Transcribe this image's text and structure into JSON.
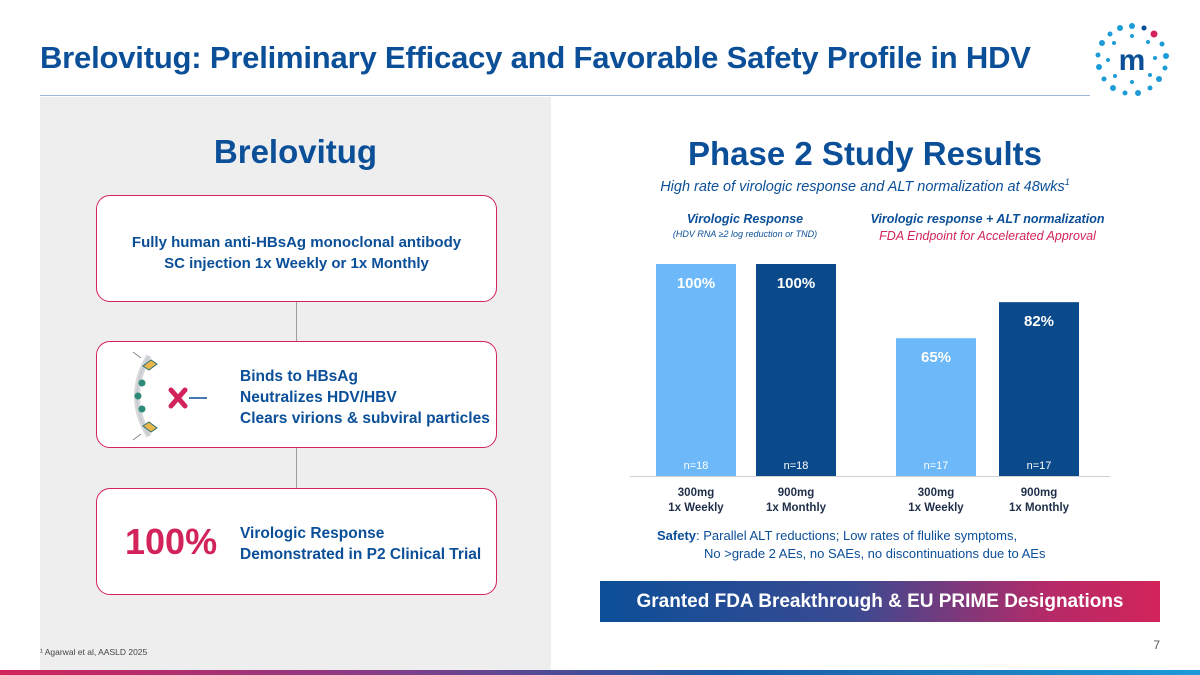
{
  "title": "Brelovitug: Preliminary Efficacy and Favorable Safety Profile in HDV",
  "left": {
    "heading": "Brelovitug",
    "box1": [
      "Fully human anti-HBsAg monoclonal antibody",
      "SC injection 1x Weekly or 1x Monthly"
    ],
    "box2": [
      "Binds to HBsAg",
      "Neutralizes HDV/HBV",
      "Clears virions & subviral particles"
    ],
    "box3": {
      "big": "100%",
      "lines": [
        "Virologic Response",
        "Demonstrated in P2 Clinical Trial"
      ]
    }
  },
  "right": {
    "heading": "Phase 2 Study Results",
    "subtitle": "High rate of virologic response and ALT normalization at 48wks",
    "subtitle_sup": "1",
    "legend_a_title": "Virologic Response",
    "legend_a_sub": "(HDV RNA ≥2 log reduction or TND)",
    "legend_b_title": "Virologic response + ALT normalization",
    "legend_b_sub": "FDA Endpoint for Accelerated Approval",
    "safety_label": "Safety",
    "safety_line1": ": Parallel ALT reductions; Low rates of flulike symptoms,",
    "safety_line2": "No >grade 2 AEs, no SAEs, no discontinuations due to AEs",
    "banner": "Granted FDA Breakthrough & EU PRIME Designations"
  },
  "chart_data": {
    "type": "bar",
    "ylim": [
      0,
      100
    ],
    "groups": [
      "Virologic Response",
      "Virologic response + ALT normalization"
    ],
    "bars": [
      {
        "group": 0,
        "dose": "300mg",
        "freq": "1x Weekly",
        "value": 100,
        "label": "100%",
        "n": "n=18",
        "color": "#6cb8f8"
      },
      {
        "group": 0,
        "dose": "900mg",
        "freq": "1x Monthly",
        "value": 100,
        "label": "100%",
        "n": "n=18",
        "color": "#0a4a8a"
      },
      {
        "group": 1,
        "dose": "300mg",
        "freq": "1x Weekly",
        "value": 65,
        "label": "65%",
        "n": "n=17",
        "color": "#6cb8f8"
      },
      {
        "group": 1,
        "dose": "900mg",
        "freq": "1x Monthly",
        "value": 82,
        "label": "82%",
        "n": "n=17",
        "color": "#0a4a8a"
      }
    ]
  },
  "footnote": "¹ Agarwal et al, AASLD 2025",
  "page_number": "7",
  "colors": {
    "brand_blue": "#0b4f98",
    "accent_pink": "#d2245a",
    "light_bar": "#6cb8f8",
    "dark_bar": "#0a4a8a"
  }
}
